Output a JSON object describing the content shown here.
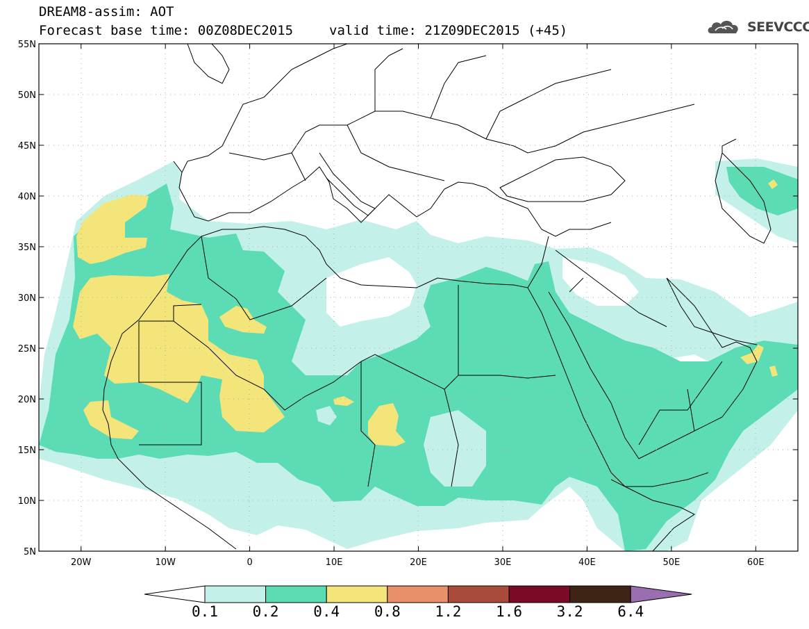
{
  "title": {
    "line1": "DREAM8-assim: AOT",
    "base_time": "Forecast base time: 00Z08DEC2015",
    "valid_time": "valid time: 21Z09DEC2015 (+45)"
  },
  "logo": {
    "text": "SEEVCCC",
    "icon": "cloud-logo-icon"
  },
  "map": {
    "lat_range": [
      5,
      55
    ],
    "lon_range": [
      -25,
      65
    ],
    "lat_ticks": [
      {
        "value": 55,
        "label": "55N"
      },
      {
        "value": 50,
        "label": "50N"
      },
      {
        "value": 45,
        "label": "45N"
      },
      {
        "value": 40,
        "label": "40N"
      },
      {
        "value": 35,
        "label": "35N"
      },
      {
        "value": 30,
        "label": "30N"
      },
      {
        "value": 25,
        "label": "25N"
      },
      {
        "value": 20,
        "label": "20N"
      },
      {
        "value": 15,
        "label": "15N"
      },
      {
        "value": 10,
        "label": "10N"
      },
      {
        "value": 5,
        "label": "5N"
      }
    ],
    "lon_ticks": [
      {
        "value": -20,
        "label": "20W"
      },
      {
        "value": -10,
        "label": "10W"
      },
      {
        "value": 0,
        "label": "0"
      },
      {
        "value": 10,
        "label": "10E"
      },
      {
        "value": 20,
        "label": "20E"
      },
      {
        "value": 30,
        "label": "30E"
      },
      {
        "value": 40,
        "label": "40E"
      },
      {
        "value": 50,
        "label": "50E"
      },
      {
        "value": 60,
        "label": "60E"
      }
    ],
    "grid": "dotted"
  },
  "colorbar": {
    "levels": [
      "0.1",
      "0.2",
      "0.4",
      "0.8",
      "1.2",
      "1.6",
      "3.2",
      "6.4"
    ],
    "colors": [
      "#ffffff",
      "#c4f0ea",
      "#5bdcb5",
      "#f4e57a",
      "#e8906a",
      "#a84b3a",
      "#7a0a26",
      "#3e2414",
      "#9a6eb0"
    ]
  }
}
